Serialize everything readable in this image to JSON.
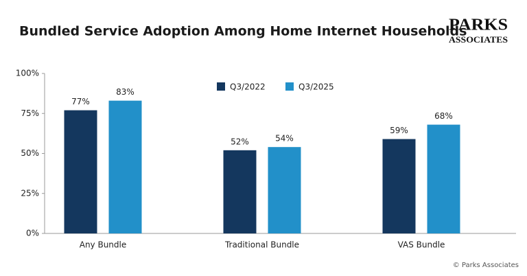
{
  "chart_data": {
    "type": "bar",
    "title": "Bundled Service Adoption Among Home Internet Households",
    "logo": [
      "PARKS",
      "ASSOCIATES"
    ],
    "footer": "© Parks Associates",
    "categories": [
      "Any Bundle",
      "Traditional Bundle",
      "VAS Bundle"
    ],
    "series": [
      {
        "name": "Q3/2022",
        "color": "#14375e",
        "values": [
          77,
          52,
          59
        ],
        "value_labels": [
          "77%",
          "52%",
          "59%"
        ]
      },
      {
        "name": "Q3/2025",
        "color": "#2290c9",
        "values": [
          83,
          54,
          68
        ],
        "value_labels": [
          "83%",
          "54%",
          "68%"
        ]
      }
    ],
    "ylim": [
      0,
      100
    ],
    "yticks": [
      {
        "value": 0,
        "label": "0%"
      },
      {
        "value": 25,
        "label": "25%"
      },
      {
        "value": 50,
        "label": "50%"
      },
      {
        "value": 75,
        "label": "75%"
      },
      {
        "value": 100,
        "label": "100%"
      }
    ],
    "grid": false
  }
}
